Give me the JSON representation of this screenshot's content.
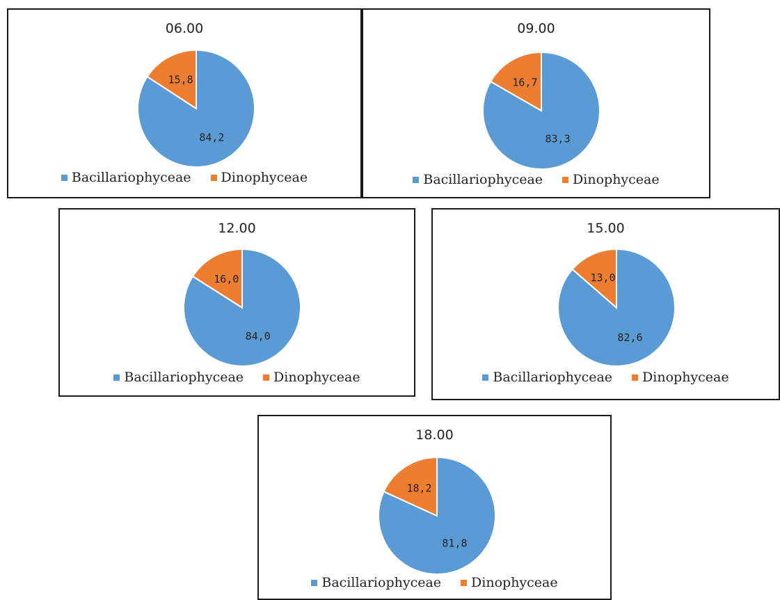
{
  "colors": {
    "Bacillariophyceae": "#5b9bd5",
    "Dinophyceae": "#ed7d31"
  },
  "legend": {
    "bacillariophyceae": "Bacillariophyceae",
    "dinophyceae": "Dinophyceae"
  },
  "chart_data": [
    {
      "type": "pie",
      "title": "06.00",
      "categories": [
        "Bacillariophyceae",
        "Dinophyceae"
      ],
      "values": [
        84.2,
        15.8
      ],
      "labels": [
        "84,2",
        "15,8"
      ],
      "legend_position": "bottom"
    },
    {
      "type": "pie",
      "title": "09.00",
      "categories": [
        "Bacillariophyceae",
        "Dinophyceae"
      ],
      "values": [
        83.3,
        16.7
      ],
      "labels": [
        "83,3",
        "16,7"
      ],
      "legend_position": "bottom"
    },
    {
      "type": "pie",
      "title": "12.00",
      "categories": [
        "Bacillariophyceae",
        "Dinophyceae"
      ],
      "values": [
        84.0,
        16.0
      ],
      "labels": [
        "84,0",
        "16,0"
      ],
      "legend_position": "bottom"
    },
    {
      "type": "pie",
      "title": "15.00",
      "categories": [
        "Bacillariophyceae",
        "Dinophyceae"
      ],
      "values": [
        82.6,
        13.0
      ],
      "labels": [
        "82,6",
        "13,0"
      ],
      "legend_position": "bottom"
    },
    {
      "type": "pie",
      "title": "18.00",
      "categories": [
        "Bacillariophyceae",
        "Dinophyceae"
      ],
      "values": [
        81.8,
        18.2
      ],
      "labels": [
        "81,8",
        "18,2"
      ],
      "legend_position": "bottom"
    }
  ]
}
